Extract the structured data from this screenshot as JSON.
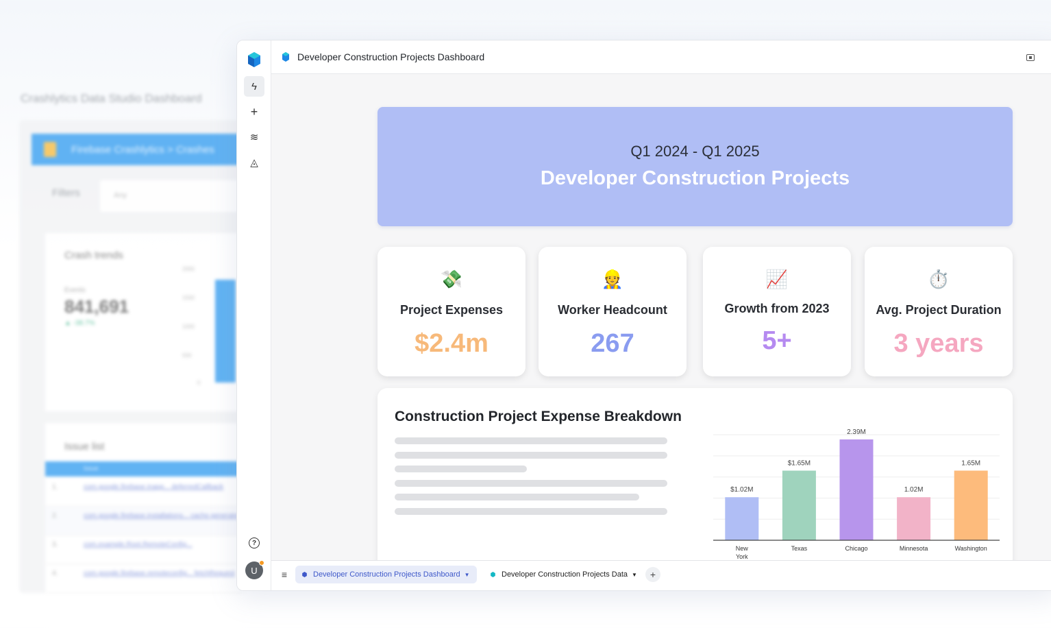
{
  "background": {
    "title": "Crashlytics Data Studio Dashboard",
    "bar_text": "Firebase Crashlytics > Crashes",
    "filters_label": "Filters",
    "filter_value": "Any",
    "crash_card": {
      "title": "Crash trends",
      "sub": "Events",
      "number": "841,691",
      "change": "▲ -38.7%",
      "axis": [
        "2000",
        "1500",
        "1000",
        "500",
        "0"
      ]
    },
    "issue_card": {
      "title": "Issue list",
      "header": "Issue",
      "rows": [
        {
          "idx": "1.",
          "text": "com.google.firebase.inapp... deferredCallback"
        },
        {
          "idx": "2.",
          "text": "com.google.firebase.installations... cache.generateId"
        },
        {
          "idx": "3.",
          "text": "com.example.Root.RemoteConfig..."
        },
        {
          "idx": "4.",
          "text": "com.google.firebase.remoteconfig... fetchRequest"
        }
      ]
    }
  },
  "window": {
    "title": "Developer Construction Projects Dashboard"
  },
  "rail": {
    "items": [
      {
        "name": "bolt-icon",
        "glyph": "ϟ"
      },
      {
        "name": "plus-icon",
        "glyph": "+"
      },
      {
        "name": "layers-icon",
        "glyph": "≋"
      },
      {
        "name": "paint-bucket-icon",
        "glyph": "◬"
      }
    ],
    "help_glyph": "?",
    "avatar_letter": "U"
  },
  "hero": {
    "subtitle": "Q1 2024 - Q1 2025",
    "title": "Developer Construction Projects"
  },
  "kpis": [
    {
      "emoji": "💸",
      "label": "Project Expenses",
      "value": "$2.4m",
      "color": "#f7b97a"
    },
    {
      "emoji": "👷",
      "label": "Worker Headcount",
      "value": "267",
      "color": "#8a9cf0"
    },
    {
      "emoji": "📈",
      "label": "Growth from 2023",
      "value": "5+",
      "color": "#b58af0"
    },
    {
      "emoji": "⏱️",
      "label": "Avg. Project Duration",
      "value": "3 years",
      "color": "#f5a7c0"
    }
  ],
  "chart_section": {
    "title": "Construction Project Expense Breakdown"
  },
  "chart_data": {
    "type": "bar",
    "categories": [
      "New York",
      "Texas",
      "Chicago",
      "Minnesota",
      "Washington"
    ],
    "values": [
      1.02,
      1.65,
      2.39,
      1.02,
      1.65
    ],
    "data_labels": [
      "$1.02M",
      "$1.65M",
      "2.39M",
      "1.02M",
      "1.65M"
    ],
    "colors": [
      "#b0bef5",
      "#9fd3bd",
      "#b795ec",
      "#f2b3c8",
      "#fdbb7c"
    ],
    "title": "",
    "xlabel": "",
    "ylabel": "",
    "ylim": [
      0,
      2.6
    ],
    "grid": true
  },
  "tabbar": {
    "menu_glyph": "≡",
    "tabs": [
      {
        "label": "Developer Construction Projects Dashboard",
        "active": true
      },
      {
        "label": "Developer Construction Projects Data",
        "active": false
      }
    ],
    "add_glyph": "+"
  }
}
